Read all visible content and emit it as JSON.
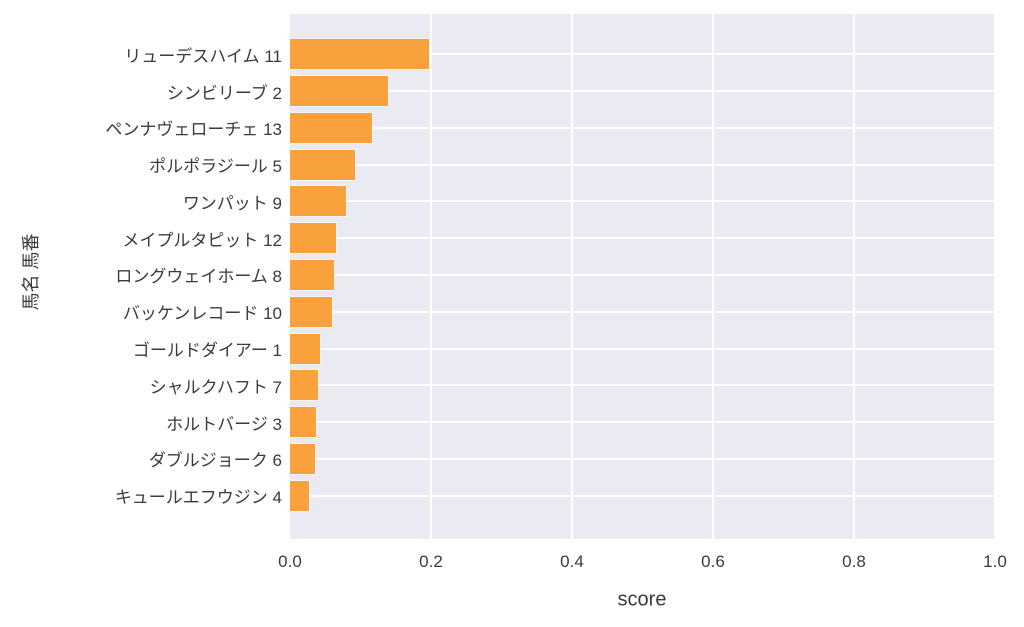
{
  "chart_data": {
    "type": "bar",
    "orientation": "horizontal",
    "xlabel": "score",
    "ylabel": "馬名 馬番",
    "xlim": [
      0.0,
      1.0
    ],
    "x_ticks": [
      0.0,
      0.2,
      0.4,
      0.6,
      0.8,
      1.0
    ],
    "x_tick_labels": [
      "0.0",
      "0.2",
      "0.4",
      "0.6",
      "0.8",
      "1.0"
    ],
    "grid": true,
    "legend_position": "none",
    "categories": [
      "リューデスハイム 11",
      "シンビリーブ 2",
      "ペンナヴェローチェ 13",
      "ポルポラジール 5",
      "ワンパット 9",
      "メイプルタピット 12",
      "ロングウェイホーム 8",
      "バッケンレコード 10",
      "ゴールドダイアー 1",
      "シャルクハフト 7",
      "ホルトバージ 3",
      "ダブルジョーク 6",
      "キュールエフウジン 4"
    ],
    "values": [
      0.197,
      0.139,
      0.117,
      0.092,
      0.08,
      0.065,
      0.062,
      0.06,
      0.042,
      0.04,
      0.037,
      0.036,
      0.027
    ],
    "colors": {
      "bar": "#f9a13c",
      "plot_background": "#eaeaf2",
      "grid": "#ffffff",
      "text": "#3b3b3b",
      "page_background": "#ffffff"
    }
  }
}
